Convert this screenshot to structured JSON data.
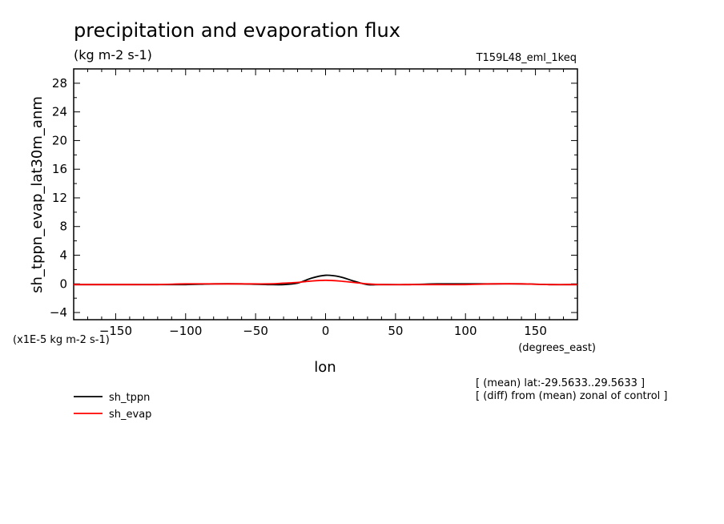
{
  "chart_data": {
    "type": "line",
    "title": "precipitation and evaporation flux",
    "units": "(kg m-2 s-1)",
    "experiment": "T159L48_eml_1keq",
    "xlabel": "lon",
    "xunits": "(degrees_east)",
    "ylabel": "sh_tppn_evap_lat30m_anm",
    "yscale_note": "(x1E-5 kg m-2 s-1)",
    "xlim": [
      -180,
      180
    ],
    "ylim": [
      -5,
      30
    ],
    "x_ticks": [
      -150,
      -100,
      -50,
      0,
      50,
      100,
      150
    ],
    "y_ticks": [
      -4,
      0,
      4,
      8,
      12,
      16,
      20,
      24,
      28
    ],
    "grid": false,
    "legend_position": "bottom-left",
    "notes": [
      "[ (mean) lat:-29.5633..29.5633 ]",
      "[ (diff) from (mean) zonal of control ]"
    ],
    "series": [
      {
        "name": "sh_tppn",
        "color": "#000000",
        "x": [
          -180,
          -160,
          -140,
          -120,
          -100,
          -80,
          -60,
          -40,
          -30,
          -20,
          -10,
          0,
          10,
          20,
          30,
          40,
          60,
          80,
          100,
          120,
          140,
          160,
          180
        ],
        "y": [
          -0.1,
          -0.1,
          -0.1,
          -0.1,
          -0.1,
          0.0,
          0.0,
          -0.1,
          -0.1,
          0.1,
          0.8,
          1.2,
          1.0,
          0.4,
          -0.1,
          -0.1,
          -0.1,
          0.0,
          0.0,
          0.0,
          0.0,
          -0.1,
          -0.1
        ]
      },
      {
        "name": "sh_evap",
        "color": "#ff0000",
        "x": [
          -180,
          -160,
          -140,
          -120,
          -100,
          -80,
          -60,
          -40,
          -30,
          -20,
          -10,
          0,
          10,
          20,
          30,
          40,
          60,
          80,
          100,
          120,
          140,
          160,
          180
        ],
        "y": [
          -0.1,
          -0.1,
          -0.1,
          -0.1,
          0.0,
          0.0,
          0.0,
          0.0,
          0.1,
          0.2,
          0.4,
          0.5,
          0.4,
          0.2,
          0.0,
          -0.1,
          -0.1,
          -0.1,
          -0.1,
          0.0,
          0.0,
          -0.1,
          -0.1
        ]
      }
    ]
  }
}
